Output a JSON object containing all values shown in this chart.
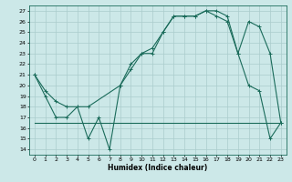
{
  "title": "",
  "xlabel": "Humidex (Indice chaleur)",
  "bg_color": "#cce8e8",
  "line_color": "#1a6b5a",
  "grid_color": "#aacccc",
  "xlim": [
    -0.5,
    23.5
  ],
  "ylim": [
    13.5,
    27.5
  ],
  "yticks": [
    14,
    15,
    16,
    17,
    18,
    19,
    20,
    21,
    22,
    23,
    24,
    25,
    26,
    27
  ],
  "xticks": [
    0,
    1,
    2,
    3,
    4,
    5,
    6,
    7,
    8,
    9,
    10,
    11,
    12,
    13,
    14,
    15,
    16,
    17,
    18,
    19,
    20,
    21,
    22,
    23
  ],
  "line1_x": [
    0,
    1,
    2,
    3,
    4,
    5,
    6,
    7,
    8,
    9,
    10,
    11,
    12,
    13,
    14,
    15,
    16,
    17,
    18,
    19,
    20,
    21,
    22,
    23
  ],
  "line1_y": [
    21,
    19,
    17,
    17,
    18,
    15,
    17,
    14,
    20,
    22,
    23,
    23,
    25,
    26.5,
    26.5,
    26.5,
    27,
    27,
    26.5,
    23,
    20,
    19.5,
    15,
    16.5
  ],
  "line2_x": [
    0,
    2,
    4,
    18,
    23
  ],
  "line2_y": [
    16.5,
    16.5,
    16.5,
    16.5,
    16.5
  ],
  "line3_x": [
    0,
    1,
    2,
    3,
    4,
    5,
    8,
    9,
    10,
    11,
    12,
    13,
    14,
    15,
    16,
    17,
    18,
    19,
    20,
    21,
    22,
    23
  ],
  "line3_y": [
    21,
    19.5,
    18.5,
    18.0,
    18,
    18,
    20,
    21.5,
    23,
    23.5,
    25,
    26.5,
    26.5,
    26.5,
    27,
    26.5,
    26,
    23,
    26,
    25.5,
    23,
    16.5
  ]
}
